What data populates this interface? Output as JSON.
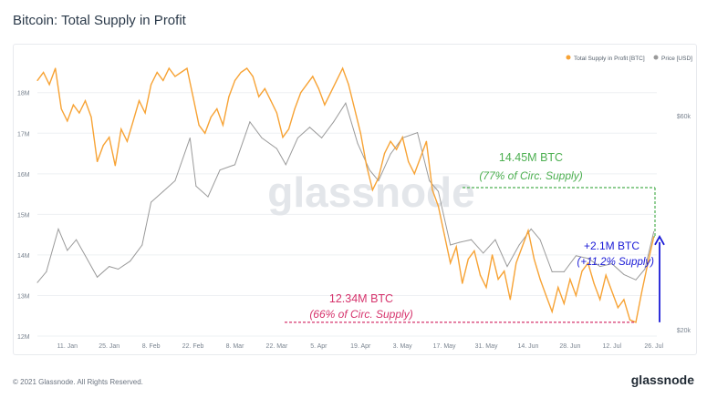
{
  "title": "Bitcoin: Total Supply in Profit",
  "footer": {
    "copyright": "© 2021 Glassnode. All Rights Reserved.",
    "logo": "glassnode"
  },
  "watermark": "glassnode",
  "colors": {
    "supply": "#f7a335",
    "price": "#9a9a9a",
    "green": "#4caf50",
    "blue": "#1a1ad6",
    "red": "#d6336c",
    "grid": "#eef0f3",
    "tick": "#7a8490"
  },
  "annotations": {
    "high_value": "14.45M BTC",
    "high_sub": "(77% of Circ. Supply)",
    "low_value": "12.34M BTC",
    "low_sub": "(66% of Circ. Supply)",
    "delta_value": "+2.1M BTC",
    "delta_sub": "(+11.2% Supply)"
  },
  "chart_data": {
    "type": "line",
    "title": "Bitcoin: Total Supply in Profit",
    "x_start": "2021-01-01",
    "x_end": "2021-07-27",
    "x_ticks": [
      {
        "date": "2021-01-11",
        "label": "11. Jan"
      },
      {
        "date": "2021-01-25",
        "label": "25. Jan"
      },
      {
        "date": "2021-02-08",
        "label": "8. Feb"
      },
      {
        "date": "2021-02-22",
        "label": "22. Feb"
      },
      {
        "date": "2021-03-08",
        "label": "8. Mar"
      },
      {
        "date": "2021-03-22",
        "label": "22. Mar"
      },
      {
        "date": "2021-04-05",
        "label": "5. Apr"
      },
      {
        "date": "2021-04-19",
        "label": "19. Apr"
      },
      {
        "date": "2021-05-03",
        "label": "3. May"
      },
      {
        "date": "2021-05-17",
        "label": "17. May"
      },
      {
        "date": "2021-05-31",
        "label": "31. May"
      },
      {
        "date": "2021-06-14",
        "label": "14. Jun"
      },
      {
        "date": "2021-06-28",
        "label": "28. Jun"
      },
      {
        "date": "2021-07-12",
        "label": "12. Jul"
      },
      {
        "date": "2021-07-26",
        "label": "26. Jul"
      }
    ],
    "y_left": {
      "ylim": [
        12.0,
        18.6
      ],
      "ticks": [
        {
          "value": 12,
          "label": "12M"
        },
        {
          "value": 13,
          "label": "13M"
        },
        {
          "value": 14,
          "label": "14M"
        },
        {
          "value": 15,
          "label": "15M"
        },
        {
          "value": 16,
          "label": "16M"
        },
        {
          "value": 17,
          "label": "17M"
        },
        {
          "value": 18,
          "label": "18M"
        }
      ]
    },
    "y_right": {
      "ylim": [
        20000,
        70000
      ],
      "ticks": [
        {
          "value": 20000,
          "label": "$20k"
        },
        {
          "value": 60000,
          "label": "$60k"
        }
      ]
    },
    "legend_position": "top-right",
    "series": [
      {
        "name": "Total Supply in Profit [BTC]",
        "color": "#f7a335",
        "axis": "left",
        "points": [
          [
            "2021-01-01",
            18.3
          ],
          [
            "2021-01-03",
            18.5
          ],
          [
            "2021-01-05",
            18.2
          ],
          [
            "2021-01-07",
            18.6
          ],
          [
            "2021-01-09",
            17.6
          ],
          [
            "2021-01-11",
            17.3
          ],
          [
            "2021-01-13",
            17.7
          ],
          [
            "2021-01-15",
            17.5
          ],
          [
            "2021-01-17",
            17.8
          ],
          [
            "2021-01-19",
            17.4
          ],
          [
            "2021-01-21",
            16.3
          ],
          [
            "2021-01-23",
            16.7
          ],
          [
            "2021-01-25",
            16.9
          ],
          [
            "2021-01-27",
            16.2
          ],
          [
            "2021-01-29",
            17.1
          ],
          [
            "2021-01-31",
            16.8
          ],
          [
            "2021-02-02",
            17.3
          ],
          [
            "2021-02-04",
            17.8
          ],
          [
            "2021-02-06",
            17.5
          ],
          [
            "2021-02-08",
            18.2
          ],
          [
            "2021-02-10",
            18.5
          ],
          [
            "2021-02-12",
            18.3
          ],
          [
            "2021-02-14",
            18.6
          ],
          [
            "2021-02-16",
            18.4
          ],
          [
            "2021-02-18",
            18.5
          ],
          [
            "2021-02-20",
            18.6
          ],
          [
            "2021-02-22",
            17.9
          ],
          [
            "2021-02-24",
            17.2
          ],
          [
            "2021-02-26",
            17.0
          ],
          [
            "2021-02-28",
            17.4
          ],
          [
            "2021-03-02",
            17.6
          ],
          [
            "2021-03-04",
            17.2
          ],
          [
            "2021-03-06",
            17.9
          ],
          [
            "2021-03-08",
            18.3
          ],
          [
            "2021-03-10",
            18.5
          ],
          [
            "2021-03-12",
            18.6
          ],
          [
            "2021-03-14",
            18.4
          ],
          [
            "2021-03-16",
            17.9
          ],
          [
            "2021-03-18",
            18.1
          ],
          [
            "2021-03-20",
            17.8
          ],
          [
            "2021-03-22",
            17.5
          ],
          [
            "2021-03-24",
            16.9
          ],
          [
            "2021-03-26",
            17.1
          ],
          [
            "2021-03-28",
            17.6
          ],
          [
            "2021-03-30",
            18.0
          ],
          [
            "2021-04-01",
            18.2
          ],
          [
            "2021-04-03",
            18.4
          ],
          [
            "2021-04-05",
            18.1
          ],
          [
            "2021-04-07",
            17.7
          ],
          [
            "2021-04-09",
            18.0
          ],
          [
            "2021-04-11",
            18.3
          ],
          [
            "2021-04-13",
            18.6
          ],
          [
            "2021-04-15",
            18.2
          ],
          [
            "2021-04-17",
            17.6
          ],
          [
            "2021-04-19",
            17.0
          ],
          [
            "2021-04-21",
            16.2
          ],
          [
            "2021-04-23",
            15.6
          ],
          [
            "2021-04-25",
            15.9
          ],
          [
            "2021-04-27",
            16.5
          ],
          [
            "2021-04-29",
            16.8
          ],
          [
            "2021-05-01",
            16.6
          ],
          [
            "2021-05-03",
            16.9
          ],
          [
            "2021-05-05",
            16.3
          ],
          [
            "2021-05-07",
            16.0
          ],
          [
            "2021-05-09",
            16.4
          ],
          [
            "2021-05-11",
            16.8
          ],
          [
            "2021-05-13",
            15.6
          ],
          [
            "2021-05-15",
            15.2
          ],
          [
            "2021-05-17",
            14.5
          ],
          [
            "2021-05-19",
            13.8
          ],
          [
            "2021-05-21",
            14.2
          ],
          [
            "2021-05-23",
            13.3
          ],
          [
            "2021-05-25",
            13.9
          ],
          [
            "2021-05-27",
            14.1
          ],
          [
            "2021-05-29",
            13.5
          ],
          [
            "2021-05-31",
            13.2
          ],
          [
            "2021-06-02",
            14.0
          ],
          [
            "2021-06-04",
            13.4
          ],
          [
            "2021-06-06",
            13.6
          ],
          [
            "2021-06-08",
            12.9
          ],
          [
            "2021-06-10",
            13.8
          ],
          [
            "2021-06-12",
            14.2
          ],
          [
            "2021-06-14",
            14.6
          ],
          [
            "2021-06-16",
            13.9
          ],
          [
            "2021-06-18",
            13.4
          ],
          [
            "2021-06-20",
            13.0
          ],
          [
            "2021-06-22",
            12.6
          ],
          [
            "2021-06-24",
            13.2
          ],
          [
            "2021-06-26",
            12.8
          ],
          [
            "2021-06-28",
            13.4
          ],
          [
            "2021-06-30",
            13.0
          ],
          [
            "2021-07-02",
            13.6
          ],
          [
            "2021-07-04",
            13.8
          ],
          [
            "2021-07-06",
            13.3
          ],
          [
            "2021-07-08",
            12.9
          ],
          [
            "2021-07-10",
            13.5
          ],
          [
            "2021-07-12",
            13.1
          ],
          [
            "2021-07-14",
            12.7
          ],
          [
            "2021-07-16",
            12.9
          ],
          [
            "2021-07-18",
            12.4
          ],
          [
            "2021-07-20",
            12.34
          ],
          [
            "2021-07-22",
            13.1
          ],
          [
            "2021-07-24",
            13.8
          ],
          [
            "2021-07-26",
            14.45
          ]
        ]
      },
      {
        "name": "Price [USD]",
        "color": "#9a9a9a",
        "axis": "right",
        "points": [
          [
            "2021-01-01",
            30000
          ],
          [
            "2021-01-04",
            32000
          ],
          [
            "2021-01-08",
            40000
          ],
          [
            "2021-01-11",
            36000
          ],
          [
            "2021-01-14",
            38000
          ],
          [
            "2021-01-17",
            35000
          ],
          [
            "2021-01-21",
            31000
          ],
          [
            "2021-01-25",
            33000
          ],
          [
            "2021-01-28",
            32500
          ],
          [
            "2021-02-01",
            34000
          ],
          [
            "2021-02-05",
            37000
          ],
          [
            "2021-02-08",
            45000
          ],
          [
            "2021-02-12",
            47000
          ],
          [
            "2021-02-16",
            49000
          ],
          [
            "2021-02-21",
            57000
          ],
          [
            "2021-02-23",
            48000
          ],
          [
            "2021-02-27",
            46000
          ],
          [
            "2021-03-03",
            51000
          ],
          [
            "2021-03-08",
            52000
          ],
          [
            "2021-03-13",
            60000
          ],
          [
            "2021-03-17",
            57000
          ],
          [
            "2021-03-22",
            55000
          ],
          [
            "2021-03-25",
            52000
          ],
          [
            "2021-03-29",
            57000
          ],
          [
            "2021-04-02",
            59000
          ],
          [
            "2021-04-06",
            57000
          ],
          [
            "2021-04-10",
            60000
          ],
          [
            "2021-04-14",
            63500
          ],
          [
            "2021-04-18",
            56000
          ],
          [
            "2021-04-22",
            51000
          ],
          [
            "2021-04-25",
            49000
          ],
          [
            "2021-04-29",
            54000
          ],
          [
            "2021-05-03",
            57000
          ],
          [
            "2021-05-08",
            58000
          ],
          [
            "2021-05-12",
            49000
          ],
          [
            "2021-05-15",
            47000
          ],
          [
            "2021-05-19",
            37000
          ],
          [
            "2021-05-22",
            37500
          ],
          [
            "2021-05-26",
            38000
          ],
          [
            "2021-05-30",
            35500
          ],
          [
            "2021-06-03",
            38000
          ],
          [
            "2021-06-07",
            33000
          ],
          [
            "2021-06-11",
            37000
          ],
          [
            "2021-06-15",
            40000
          ],
          [
            "2021-06-18",
            38000
          ],
          [
            "2021-06-22",
            32000
          ],
          [
            "2021-06-26",
            32000
          ],
          [
            "2021-06-30",
            35000
          ],
          [
            "2021-07-04",
            34500
          ],
          [
            "2021-07-08",
            33000
          ],
          [
            "2021-07-12",
            33500
          ],
          [
            "2021-07-16",
            31500
          ],
          [
            "2021-07-20",
            30500
          ],
          [
            "2021-07-23",
            32500
          ],
          [
            "2021-07-26",
            39500
          ]
        ]
      }
    ]
  }
}
